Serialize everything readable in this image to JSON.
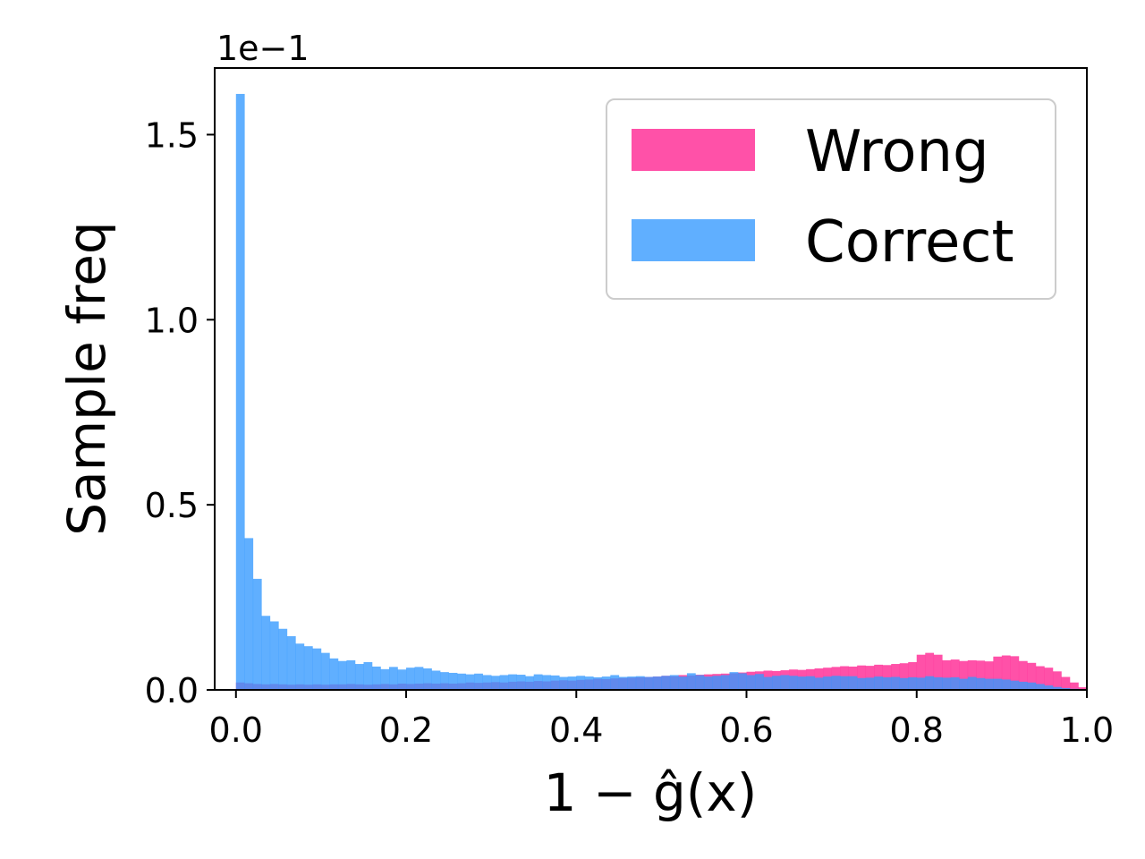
{
  "chart_data": {
    "type": "bar",
    "subtype": "overlaid-histogram",
    "title": "",
    "xlabel": "1 − ĝ(x)",
    "ylabel": "Sample freq",
    "y_offset_text": "1e−1",
    "xlim": [
      -0.025,
      1.0
    ],
    "ylim": [
      0,
      1.68
    ],
    "xticks": [
      0.0,
      0.2,
      0.4,
      0.6,
      0.8,
      1.0
    ],
    "xtick_labels": [
      "0.0",
      "0.2",
      "0.4",
      "0.6",
      "0.8",
      "1.0"
    ],
    "yticks": [
      0.0,
      0.5,
      1.0,
      1.5
    ],
    "ytick_labels": [
      "0.0",
      "0.5",
      "1.0",
      "1.5"
    ],
    "grid": false,
    "legend_position": "top-right",
    "bin_width": 0.01,
    "x_start": 0.0,
    "series": [
      {
        "name": "Wrong",
        "color": "#ff3399",
        "opacity": 0.85,
        "values": [
          0.02,
          0.018,
          0.016,
          0.015,
          0.016,
          0.015,
          0.014,
          0.015,
          0.014,
          0.015,
          0.014,
          0.015,
          0.015,
          0.016,
          0.015,
          0.014,
          0.015,
          0.016,
          0.015,
          0.017,
          0.016,
          0.017,
          0.018,
          0.017,
          0.018,
          0.017,
          0.018,
          0.02,
          0.019,
          0.02,
          0.021,
          0.02,
          0.022,
          0.023,
          0.022,
          0.024,
          0.023,
          0.025,
          0.026,
          0.025,
          0.027,
          0.028,
          0.03,
          0.029,
          0.031,
          0.032,
          0.033,
          0.034,
          0.035,
          0.036,
          0.038,
          0.037,
          0.04,
          0.039,
          0.041,
          0.042,
          0.043,
          0.044,
          0.045,
          0.047,
          0.049,
          0.05,
          0.052,
          0.051,
          0.053,
          0.055,
          0.054,
          0.056,
          0.058,
          0.06,
          0.062,
          0.064,
          0.063,
          0.066,
          0.065,
          0.068,
          0.067,
          0.07,
          0.072,
          0.075,
          0.095,
          0.1,
          0.095,
          0.08,
          0.082,
          0.078,
          0.08,
          0.079,
          0.077,
          0.09,
          0.093,
          0.091,
          0.078,
          0.073,
          0.064,
          0.06,
          0.05,
          0.035,
          0.02,
          0.007
        ]
      },
      {
        "name": "Correct",
        "color": "#3399ff",
        "opacity": 0.78,
        "values": [
          1.61,
          0.41,
          0.3,
          0.2,
          0.185,
          0.165,
          0.145,
          0.125,
          0.118,
          0.112,
          0.1,
          0.085,
          0.078,
          0.08,
          0.07,
          0.075,
          0.063,
          0.056,
          0.062,
          0.055,
          0.06,
          0.062,
          0.058,
          0.052,
          0.048,
          0.046,
          0.044,
          0.042,
          0.044,
          0.04,
          0.038,
          0.04,
          0.042,
          0.041,
          0.037,
          0.042,
          0.04,
          0.039,
          0.035,
          0.036,
          0.038,
          0.036,
          0.034,
          0.036,
          0.04,
          0.035,
          0.036,
          0.037,
          0.035,
          0.036,
          0.038,
          0.04,
          0.036,
          0.045,
          0.04,
          0.036,
          0.038,
          0.04,
          0.048,
          0.045,
          0.04,
          0.043,
          0.035,
          0.038,
          0.04,
          0.038,
          0.036,
          0.037,
          0.033,
          0.036,
          0.038,
          0.037,
          0.037,
          0.032,
          0.033,
          0.036,
          0.034,
          0.035,
          0.032,
          0.034,
          0.033,
          0.037,
          0.034,
          0.033,
          0.034,
          0.03,
          0.035,
          0.032,
          0.03,
          0.03,
          0.028,
          0.025,
          0.022,
          0.02,
          0.016,
          0.012,
          0.008,
          0.005,
          0.003,
          0.001
        ]
      }
    ]
  }
}
